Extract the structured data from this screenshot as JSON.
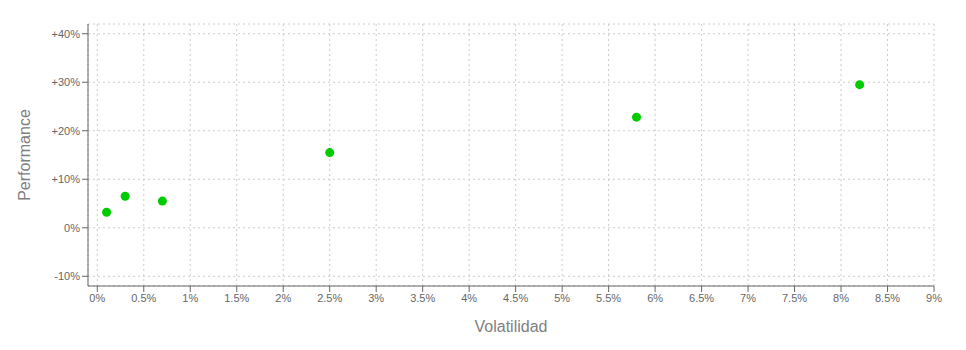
{
  "chart_data": {
    "type": "scatter",
    "xlabel": "Volatilidad",
    "ylabel": "Performance",
    "x": [
      0.001,
      0.003,
      0.007,
      0.025,
      0.058,
      0.082
    ],
    "values": [
      0.032,
      0.065,
      0.055,
      0.155,
      0.228,
      0.295
    ],
    "color": "#00cc00",
    "xlim": [
      -0.001,
      0.09
    ],
    "ylim": [
      -0.12,
      0.42
    ],
    "xticks": [
      {
        "value": 0.0,
        "label": "0%"
      },
      {
        "value": 0.005,
        "label": "0.5%"
      },
      {
        "value": 0.01,
        "label": "1%"
      },
      {
        "value": 0.015,
        "label": "1.5%"
      },
      {
        "value": 0.02,
        "label": "2%"
      },
      {
        "value": 0.025,
        "label": "2.5%"
      },
      {
        "value": 0.03,
        "label": "3%"
      },
      {
        "value": 0.035,
        "label": "3.5%"
      },
      {
        "value": 0.04,
        "label": "4%"
      },
      {
        "value": 0.045,
        "label": "4.5%"
      },
      {
        "value": 0.05,
        "label": "5%"
      },
      {
        "value": 0.055,
        "label": "5.5%"
      },
      {
        "value": 0.06,
        "label": "6%"
      },
      {
        "value": 0.065,
        "label": "6.5%"
      },
      {
        "value": 0.07,
        "label": "7%"
      },
      {
        "value": 0.075,
        "label": "7.5%"
      },
      {
        "value": 0.08,
        "label": "8%"
      },
      {
        "value": 0.085,
        "label": "8.5%"
      },
      {
        "value": 0.09,
        "label": "9%"
      }
    ],
    "yticks": [
      {
        "value": -0.1,
        "label": "-10%"
      },
      {
        "value": 0.0,
        "label": "0%"
      },
      {
        "value": 0.1,
        "label": "+10%"
      },
      {
        "value": 0.2,
        "label": "+20%"
      },
      {
        "value": 0.3,
        "label": "+30%"
      },
      {
        "value": 0.4,
        "label": "+40%"
      }
    ],
    "grid": true
  }
}
